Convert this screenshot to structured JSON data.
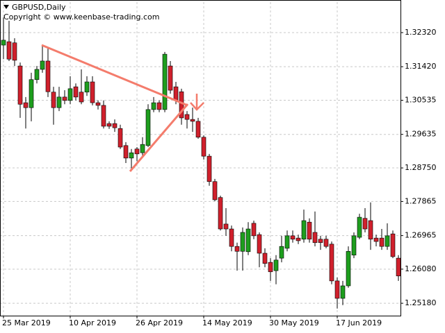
{
  "chart_data": {
    "type": "candlestick",
    "title": "GBPUSD,Daily",
    "subtitle": "Copyright © www.keenbase-trading.com",
    "categories": [
      "25 Mar 2019",
      null,
      null,
      null,
      null,
      null,
      null,
      null,
      null,
      null,
      null,
      null,
      "10 Apr 2019",
      null,
      null,
      null,
      null,
      null,
      null,
      null,
      null,
      null,
      null,
      null,
      "26 Apr 2019",
      null,
      null,
      null,
      null,
      null,
      null,
      null,
      null,
      null,
      null,
      null,
      "14 May 2019",
      null,
      null,
      null,
      null,
      null,
      null,
      null,
      null,
      null,
      null,
      null,
      "30 May 2019",
      null,
      null,
      null,
      null,
      null,
      null,
      null,
      null,
      null,
      null,
      null,
      "17 Jun 2019",
      null,
      null,
      null,
      null,
      null,
      null,
      null,
      null,
      null,
      null,
      null
    ],
    "open": [
      1.3199,
      1.3208,
      1.3205,
      1.3144,
      1.3047,
      1.3034,
      1.3108,
      1.3135,
      1.3157,
      1.3075,
      1.3034,
      1.3062,
      1.3053,
      1.3089,
      1.3075,
      1.3075,
      1.3102,
      1.3047,
      1.304,
      1.2992,
      1.2992,
      1.2979,
      1.2934,
      1.2901,
      1.2925,
      1.2915,
      1.2934,
      1.3029,
      1.3047,
      1.3029,
      1.3144,
      1.3089,
      1.3076,
      1.3016,
      1.3003,
      1.2998,
      1.2956,
      1.2906,
      1.2839,
      1.2797,
      1.2727,
      1.2714,
      1.2668,
      1.2655,
      1.2654,
      1.2729,
      1.2699,
      1.265,
      1.2626,
      1.2604,
      1.2637,
      1.2663,
      1.2696,
      1.269,
      1.2687,
      1.2732,
      1.2705,
      1.2687,
      1.2687,
      1.2674,
      1.2577,
      1.2531,
      1.2564,
      1.2645,
      1.2692,
      1.2742,
      1.2736,
      1.269,
      1.269,
      1.2668,
      1.2701,
      1.2637
    ],
    "high": [
      1.3272,
      1.3263,
      1.3217,
      1.3153,
      1.3062,
      1.3126,
      1.3144,
      1.3199,
      1.319,
      1.3089,
      1.3089,
      1.308,
      1.3117,
      1.3098,
      1.3135,
      1.3117,
      1.3117,
      1.3053,
      1.3053,
      1.2998,
      1.3003,
      1.2989,
      1.2943,
      1.2925,
      1.293,
      1.2956,
      1.3043,
      1.3062,
      1.3053,
      1.3181,
      1.3157,
      1.3102,
      1.3084,
      1.3025,
      1.3034,
      1.3007,
      1.2961,
      1.2912,
      1.2846,
      1.2802,
      1.2769,
      1.2723,
      1.2678,
      1.2718,
      1.2732,
      1.2736,
      1.2705,
      1.2663,
      1.2637,
      1.2645,
      1.2696,
      1.271,
      1.271,
      1.2699,
      1.2765,
      1.2742,
      1.276,
      1.2696,
      1.2696,
      1.2681,
      1.2586,
      1.2577,
      1.2668,
      1.2705,
      1.2754,
      1.2769,
      1.2784,
      1.2699,
      1.2714,
      1.2729,
      1.271,
      1.2645
    ],
    "low": [
      1.3162,
      1.3157,
      1.3144,
      1.3007,
      1.2979,
      1.2998,
      1.3098,
      1.3126,
      1.3062,
      1.2989,
      1.3025,
      1.3043,
      1.3043,
      1.3053,
      1.3043,
      1.3065,
      1.304,
      1.3029,
      1.2979,
      1.2978,
      1.297,
      1.2925,
      1.2888,
      1.287,
      1.2893,
      1.2906,
      1.293,
      1.3022,
      1.3022,
      1.3022,
      1.3071,
      1.3043,
      1.2989,
      1.2979,
      1.297,
      1.2952,
      1.2897,
      1.2828,
      1.2787,
      1.271,
      1.2696,
      1.2655,
      1.2604,
      1.2604,
      1.2645,
      1.2687,
      1.2613,
      1.2613,
      1.2577,
      1.2568,
      1.2626,
      1.2655,
      1.2678,
      1.2674,
      1.2678,
      1.2678,
      1.2668,
      1.2659,
      1.2663,
      1.2568,
      1.2504,
      1.2513,
      1.2559,
      1.2637,
      1.2687,
      1.2705,
      1.2659,
      1.2668,
      1.2659,
      1.2659,
      1.2637,
      1.2577
    ],
    "close": [
      1.3212,
      1.3162,
      1.3159,
      1.3043,
      1.3034,
      1.3108,
      1.3135,
      1.3157,
      1.3076,
      1.3034,
      1.3062,
      1.3053,
      1.3084,
      1.3062,
      1.3049,
      1.3102,
      1.3047,
      1.304,
      1.2985,
      1.2985,
      1.2981,
      1.293,
      1.2901,
      1.2915,
      1.2912,
      1.2937,
      1.3029,
      1.3047,
      1.3029,
      1.3175,
      1.308,
      1.3053,
      1.3007,
      1.3003,
      1.2998,
      1.2956,
      1.2906,
      1.2839,
      1.2791,
      1.2714,
      1.2714,
      1.2668,
      1.2655,
      1.2705,
      1.2714,
      1.2696,
      1.265,
      1.2623,
      1.2601,
      1.2632,
      1.2668,
      1.2696,
      1.2687,
      1.2683,
      1.2736,
      1.2687,
      1.2678,
      1.2678,
      1.2668,
      1.2577,
      1.2531,
      1.2564,
      1.2655,
      1.2696,
      1.2745,
      1.2714,
      1.2687,
      1.2681,
      1.2668,
      1.2696,
      1.2641,
      1.259
    ],
    "up_color": "#1e9e1e",
    "down_color": "#d0202c",
    "ylim": [
      1.24853,
      1.33125
    ],
    "yticks": [
      {
        "value": 1.2518,
        "label": "1.25180"
      },
      {
        "value": 1.2608,
        "label": "1.26080"
      },
      {
        "value": 1.26965,
        "label": "1.26965"
      },
      {
        "value": 1.27865,
        "label": "1.27865"
      },
      {
        "value": 1.2875,
        "label": "1.28750"
      },
      {
        "value": 1.29635,
        "label": "1.29635"
      },
      {
        "value": 1.30535,
        "label": "1.30535"
      },
      {
        "value": 1.3142,
        "label": "1.31420"
      },
      {
        "value": 1.3232,
        "label": "1.32320"
      }
    ],
    "grid": true
  }
}
